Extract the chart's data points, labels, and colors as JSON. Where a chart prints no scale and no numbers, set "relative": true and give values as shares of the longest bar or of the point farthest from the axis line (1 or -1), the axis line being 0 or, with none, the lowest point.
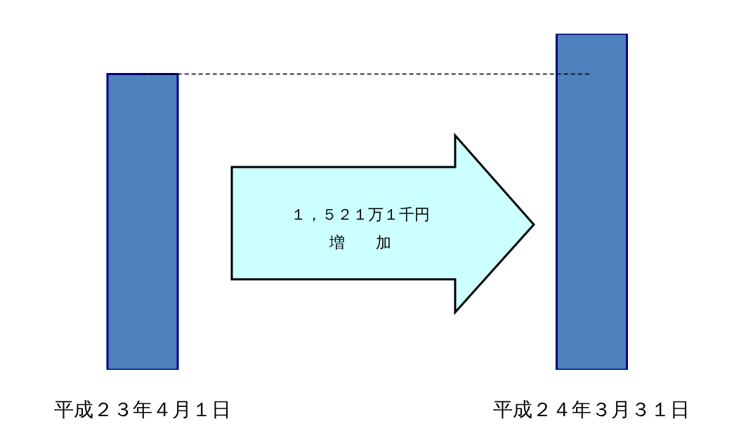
{
  "chart_data": {
    "type": "bar",
    "categories": [
      "平成２３年４月１日",
      "平成２４年３月３１日"
    ],
    "values": [
      0.88,
      1
    ],
    "color": "#4f81bd",
    "relative": true,
    "ref_lines": [
      {
        "axis": "y",
        "value": 0.88,
        "line_style": "dashed",
        "color": "#000000"
      }
    ],
    "annotations": [
      "１，５２１万１千円",
      "増　　加"
    ]
  }
}
